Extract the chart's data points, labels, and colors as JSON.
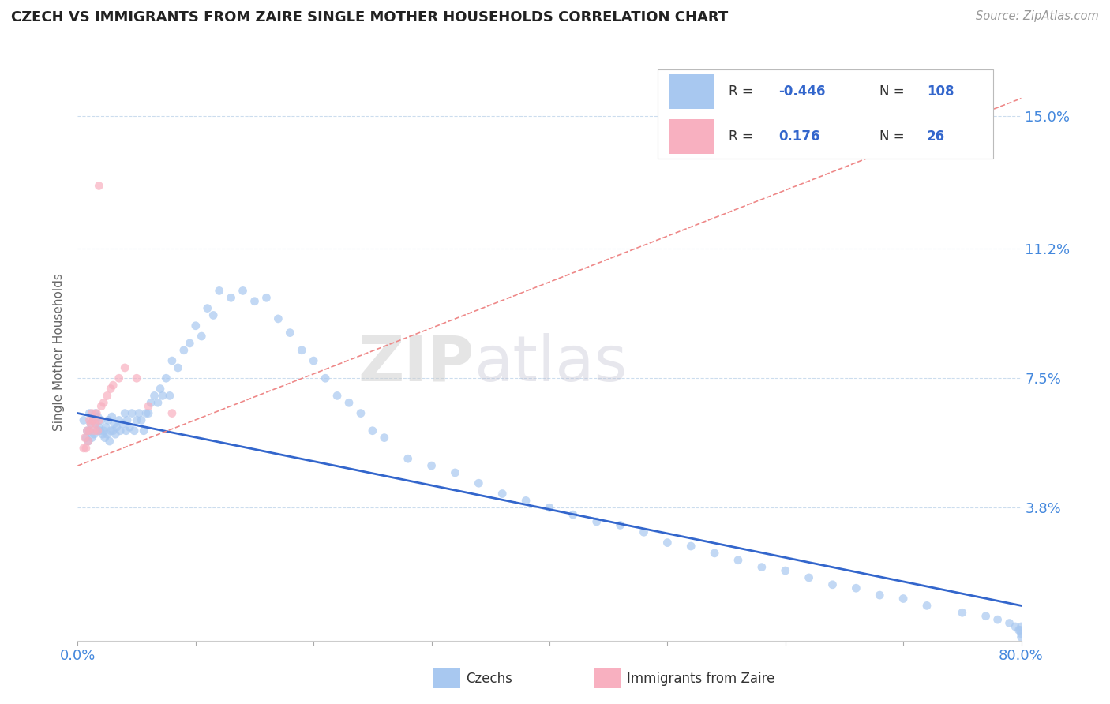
{
  "title": "CZECH VS IMMIGRANTS FROM ZAIRE SINGLE MOTHER HOUSEHOLDS CORRELATION CHART",
  "source": "Source: ZipAtlas.com",
  "ylabel": "Single Mother Households",
  "xlim": [
    0.0,
    0.8
  ],
  "ylim": [
    0.0,
    0.165
  ],
  "yticks": [
    0.038,
    0.075,
    0.112,
    0.15
  ],
  "ytick_labels": [
    "3.8%",
    "7.5%",
    "11.2%",
    "15.0%"
  ],
  "czech_color": "#a8c8f0",
  "zaire_color": "#f8b0c0",
  "czech_line_color": "#3366cc",
  "zaire_line_color": "#ee8888",
  "R_czech": -0.446,
  "N_czech": 108,
  "R_zaire": 0.176,
  "N_zaire": 26,
  "watermark_zip": "ZIP",
  "watermark_atlas": "atlas",
  "title_color": "#222222",
  "axis_label_color": "#4488dd",
  "legend_label1": "Czechs",
  "legend_label2": "Immigrants from Zaire",
  "czech_x": [
    0.005,
    0.007,
    0.008,
    0.009,
    0.01,
    0.01,
    0.011,
    0.012,
    0.013,
    0.014,
    0.015,
    0.015,
    0.016,
    0.017,
    0.018,
    0.019,
    0.02,
    0.021,
    0.022,
    0.023,
    0.024,
    0.025,
    0.026,
    0.027,
    0.028,
    0.029,
    0.03,
    0.031,
    0.032,
    0.033,
    0.035,
    0.036,
    0.038,
    0.04,
    0.041,
    0.042,
    0.044,
    0.046,
    0.048,
    0.05,
    0.052,
    0.054,
    0.056,
    0.058,
    0.06,
    0.062,
    0.065,
    0.068,
    0.07,
    0.072,
    0.075,
    0.078,
    0.08,
    0.085,
    0.09,
    0.095,
    0.1,
    0.105,
    0.11,
    0.115,
    0.12,
    0.13,
    0.14,
    0.15,
    0.16,
    0.17,
    0.18,
    0.19,
    0.2,
    0.21,
    0.22,
    0.23,
    0.24,
    0.25,
    0.26,
    0.28,
    0.3,
    0.32,
    0.34,
    0.36,
    0.38,
    0.4,
    0.42,
    0.44,
    0.46,
    0.48,
    0.5,
    0.52,
    0.54,
    0.56,
    0.58,
    0.6,
    0.62,
    0.64,
    0.66,
    0.68,
    0.7,
    0.72,
    0.75,
    0.77,
    0.78,
    0.79,
    0.795,
    0.798,
    0.799,
    0.8,
    0.8,
    0.8
  ],
  "czech_y": [
    0.063,
    0.058,
    0.06,
    0.057,
    0.065,
    0.06,
    0.062,
    0.058,
    0.063,
    0.059,
    0.065,
    0.062,
    0.06,
    0.064,
    0.061,
    0.06,
    0.063,
    0.059,
    0.06,
    0.058,
    0.061,
    0.059,
    0.063,
    0.057,
    0.06,
    0.064,
    0.06,
    0.062,
    0.059,
    0.061,
    0.063,
    0.06,
    0.062,
    0.065,
    0.06,
    0.063,
    0.061,
    0.065,
    0.06,
    0.063,
    0.065,
    0.063,
    0.06,
    0.065,
    0.065,
    0.068,
    0.07,
    0.068,
    0.072,
    0.07,
    0.075,
    0.07,
    0.08,
    0.078,
    0.083,
    0.085,
    0.09,
    0.087,
    0.095,
    0.093,
    0.1,
    0.098,
    0.1,
    0.097,
    0.098,
    0.092,
    0.088,
    0.083,
    0.08,
    0.075,
    0.07,
    0.068,
    0.065,
    0.06,
    0.058,
    0.052,
    0.05,
    0.048,
    0.045,
    0.042,
    0.04,
    0.038,
    0.036,
    0.034,
    0.033,
    0.031,
    0.028,
    0.027,
    0.025,
    0.023,
    0.021,
    0.02,
    0.018,
    0.016,
    0.015,
    0.013,
    0.012,
    0.01,
    0.008,
    0.007,
    0.006,
    0.005,
    0.004,
    0.003,
    0.003,
    0.004,
    0.002,
    0.001
  ],
  "zaire_x": [
    0.005,
    0.006,
    0.007,
    0.008,
    0.009,
    0.01,
    0.01,
    0.011,
    0.012,
    0.013,
    0.014,
    0.015,
    0.016,
    0.017,
    0.018,
    0.02,
    0.022,
    0.025,
    0.028,
    0.03,
    0.035,
    0.04,
    0.05,
    0.06,
    0.08,
    0.018
  ],
  "zaire_y": [
    0.055,
    0.058,
    0.055,
    0.06,
    0.057,
    0.06,
    0.063,
    0.062,
    0.065,
    0.063,
    0.06,
    0.062,
    0.065,
    0.06,
    0.063,
    0.067,
    0.068,
    0.07,
    0.072,
    0.073,
    0.075,
    0.078,
    0.075,
    0.067,
    0.065,
    0.13
  ],
  "czech_line_x": [
    0.0,
    0.8
  ],
  "czech_line_y": [
    0.065,
    0.01
  ],
  "zaire_line_x": [
    0.0,
    0.8
  ],
  "zaire_line_y": [
    0.05,
    0.155
  ]
}
